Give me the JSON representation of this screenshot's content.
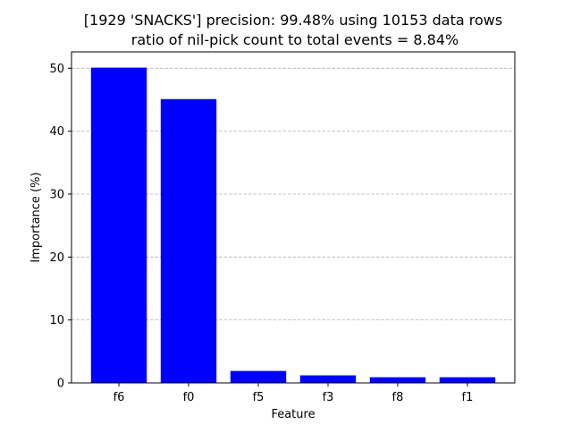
{
  "chart_data": {
    "type": "bar",
    "title_line1": "[1929 'SNACKS'] precision: 99.48% using 10153 data rows",
    "title_line2": "ratio of nil-pick count to total events = 8.84%",
    "xlabel": "Feature",
    "ylabel": "Importance (%)",
    "categories": [
      "f6",
      "f0",
      "f5",
      "f3",
      "f8",
      "f1"
    ],
    "values": [
      50.1,
      45.1,
      1.9,
      1.2,
      0.9,
      0.9
    ],
    "ylim": [
      0,
      52.6
    ],
    "yticks": [
      0,
      10,
      20,
      30,
      40,
      50
    ],
    "grid": "y-dashed",
    "bar_color": "#0000ff"
  }
}
